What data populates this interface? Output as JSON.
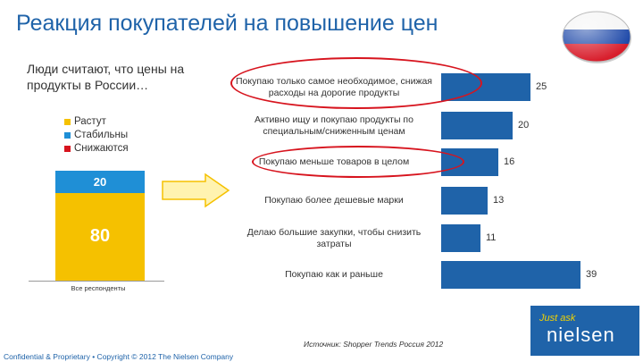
{
  "header": {
    "title": "Реакция покупателей на повышение цен"
  },
  "left_chart": {
    "question": "Люди считают, что цены на продукты в России…",
    "legend": [
      {
        "label": "Растут",
        "color": "#f5c100"
      },
      {
        "label": "Стабильны",
        "color": "#1f8fd6"
      },
      {
        "label": "Снижаются",
        "color": "#d7141e"
      }
    ],
    "category": "Все респонденты"
  },
  "chart_data": [
    {
      "type": "bar",
      "stacked": true,
      "categories": [
        "Все респонденты"
      ],
      "series": [
        {
          "name": "Растут",
          "values": [
            80
          ],
          "color": "#f5c100"
        },
        {
          "name": "Стабильны",
          "values": [
            20
          ],
          "color": "#1f8fd6"
        },
        {
          "name": "Снижаются",
          "values": [
            0
          ],
          "color": "#d7141e"
        }
      ],
      "ylim": [
        0,
        100
      ]
    },
    {
      "type": "bar",
      "orientation": "horizontal",
      "categories": [
        "Покупаю только самое необходимое, снижая расходы на дорогие продукты",
        "Активно ищу и покупаю продукты по специальным/сниженным ценам",
        "Покупаю меньше товаров в целом",
        "Покупаю более дешевые марки",
        "Делаю большие закупки, чтобы снизить затраты",
        "Покупаю как и раньше"
      ],
      "values": [
        25,
        20,
        16,
        13,
        11,
        39
      ],
      "highlighted": [
        "Покупаю только самое необходимое, снижая расходы на дорогие продукты",
        "Покупаю меньше товаров в целом"
      ],
      "color": "#1f63a9",
      "highlight_color": "#d7141e",
      "xlim": [
        0,
        40
      ]
    }
  ],
  "source": "Источник: Shopper Trends Россия 2012",
  "footer": "Confidential & Proprietary • Copyright © 2012 The Nielsen Company",
  "logo": {
    "tagline": "Just ask",
    "brand": "nielsen"
  }
}
